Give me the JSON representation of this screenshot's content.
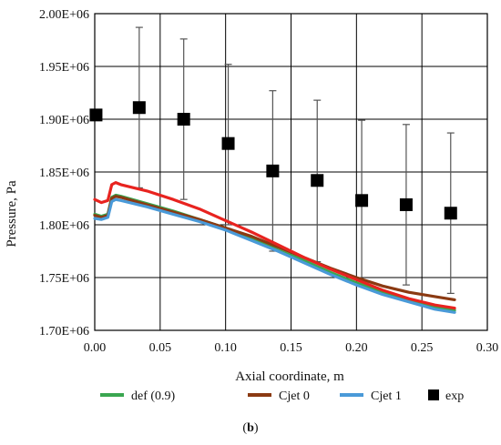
{
  "chart_data": {
    "type": "line",
    "xlabel": "Axial coordinate, m",
    "ylabel": "Pressure, Pa",
    "xlim": [
      0,
      0.3
    ],
    "ylim": [
      1700000,
      2000000
    ],
    "x_ticks": [
      "0.00",
      "0.05",
      "0.10",
      "0.15",
      "0.20",
      "0.25",
      "0.30"
    ],
    "y_ticks": [
      "1.70E+06",
      "1.75E+06",
      "1.80E+06",
      "1.85E+06",
      "1.90E+06",
      "1.95E+06",
      "2.00E+06"
    ],
    "grid": true,
    "legend_position": "bottom",
    "series": [
      {
        "name": "def (0.9)",
        "kind": "line",
        "color": "#3aa650",
        "x": [
          0,
          0.005,
          0.01,
          0.013,
          0.016,
          0.02,
          0.04,
          0.06,
          0.08,
          0.1,
          0.12,
          0.14,
          0.16,
          0.18,
          0.2,
          0.22,
          0.24,
          0.26,
          0.275
        ],
        "y": [
          1810000,
          1808000,
          1810000,
          1826000,
          1828000,
          1827000,
          1820000,
          1813000,
          1805000,
          1797000,
          1787000,
          1776000,
          1766000,
          1755000,
          1745000,
          1736000,
          1728000,
          1722000,
          1719000
        ]
      },
      {
        "name": "Cjet 0",
        "kind": "line",
        "color": "#8b3a12",
        "x": [
          0,
          0.005,
          0.01,
          0.013,
          0.016,
          0.02,
          0.04,
          0.06,
          0.08,
          0.1,
          0.12,
          0.14,
          0.16,
          0.18,
          0.2,
          0.22,
          0.24,
          0.26,
          0.275
        ],
        "y": [
          1809000,
          1807000,
          1809000,
          1825000,
          1827000,
          1826000,
          1819000,
          1812000,
          1805000,
          1797000,
          1789000,
          1779000,
          1769000,
          1759000,
          1750000,
          1742000,
          1736000,
          1732000,
          1729000
        ]
      },
      {
        "name": "Cjet 1",
        "kind": "line",
        "color": "#4a9ad8",
        "x": [
          0,
          0.005,
          0.01,
          0.013,
          0.016,
          0.02,
          0.04,
          0.06,
          0.08,
          0.1,
          0.12,
          0.14,
          0.16,
          0.18,
          0.2,
          0.22,
          0.24,
          0.26,
          0.275
        ],
        "y": [
          1806000,
          1805000,
          1807000,
          1822000,
          1824000,
          1823000,
          1817000,
          1810000,
          1803000,
          1795000,
          1785000,
          1775000,
          1764000,
          1753000,
          1743000,
          1734000,
          1727000,
          1720000,
          1717000
        ]
      },
      {
        "name": "",
        "kind": "line",
        "color": "#e8231f",
        "x": [
          0,
          0.005,
          0.01,
          0.013,
          0.016,
          0.02,
          0.04,
          0.06,
          0.08,
          0.1,
          0.12,
          0.14,
          0.16,
          0.18,
          0.2,
          0.22,
          0.24,
          0.26,
          0.275
        ],
        "y": [
          1824000,
          1821000,
          1823000,
          1838000,
          1840000,
          1838000,
          1832000,
          1824000,
          1815000,
          1804000,
          1793000,
          1781000,
          1769000,
          1758000,
          1748000,
          1738000,
          1730000,
          1724000,
          1721000
        ]
      },
      {
        "name": "exp",
        "kind": "scatter",
        "color": "#000000",
        "x": [
          0.001,
          0.034,
          0.068,
          0.102,
          0.136,
          0.17,
          0.204,
          0.238,
          0.272
        ],
        "y": [
          1904000,
          1911000,
          1900000,
          1877000,
          1851000,
          1842000,
          1823000,
          1819000,
          1811000
        ],
        "error_low": [
          1904000,
          1835000,
          1824000,
          1800000,
          1775000,
          1765000,
          1747000,
          1743000,
          1735000
        ],
        "error_high": [
          1904000,
          1987000,
          1976000,
          1952000,
          1927000,
          1918000,
          1899000,
          1895000,
          1887000
        ]
      }
    ]
  },
  "caption": {
    "open": "(",
    "letter": "b",
    "close": ")"
  }
}
